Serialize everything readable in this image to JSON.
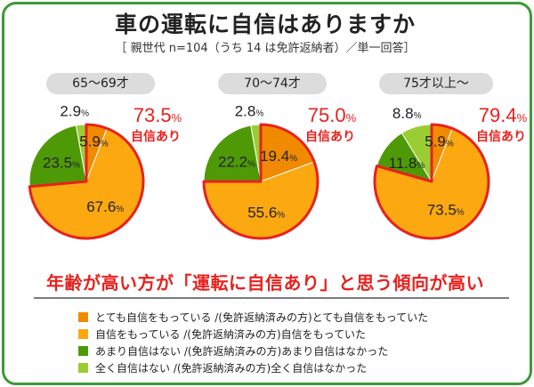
{
  "title": "車の運転に自信はありますか",
  "subtitle": "［ 親世代 n=104（うち 14 は免許返納者）／単一回答］",
  "headline": "年齢が高い方が「運転に自信あり」と思う傾向が高い",
  "chart_data": {
    "type": "pie",
    "categories": [
      "とても自信をもっている /(免許返納済みの方)とても自信をもっていた",
      "自信をもっている /(免許返納済みの方)自信をもっていた",
      "あまり自信はない /(免許返納済みの方)あまり自信はなかった",
      "全く自信はない /(免許返納済みの方)全く自信はなかった"
    ],
    "colors": [
      "#f08a00",
      "#fba811",
      "#4e9a06",
      "#9acd32"
    ],
    "highlight_color": "#e8211e",
    "confident_label": "自信あり",
    "pies": [
      {
        "group": "65〜69才",
        "values": [
          5.9,
          67.6,
          23.5,
          2.9
        ],
        "confident_total": "73.5"
      },
      {
        "group": "70〜74才",
        "values": [
          19.4,
          55.6,
          22.2,
          2.8
        ],
        "confident_total": "75.0"
      },
      {
        "group": "75才以上〜",
        "values": [
          5.9,
          73.5,
          11.8,
          8.8
        ],
        "confident_total": "79.4"
      }
    ]
  }
}
